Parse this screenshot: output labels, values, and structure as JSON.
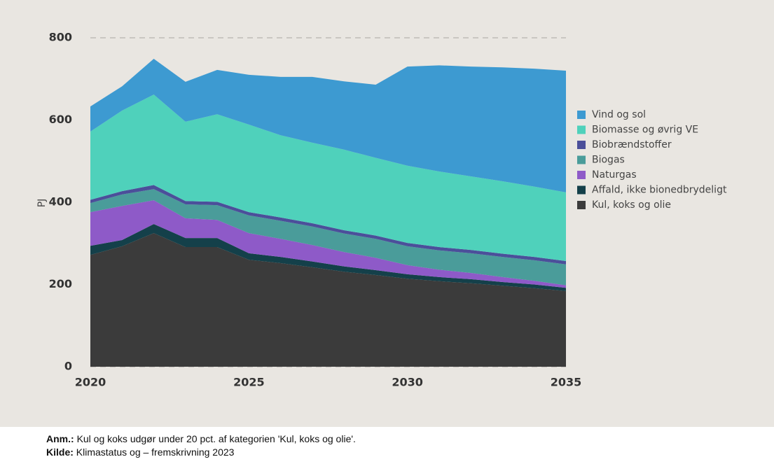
{
  "chart_data": {
    "type": "stacked_area",
    "y_label": "PJ",
    "x": [
      2020,
      2021,
      2022,
      2023,
      2024,
      2025,
      2026,
      2027,
      2028,
      2029,
      2030,
      2031,
      2032,
      2033,
      2034,
      2035
    ],
    "xlim": [
      2020,
      2035
    ],
    "xticks": [
      2020,
      2025,
      2030,
      2035
    ],
    "ylim": [
      0,
      800
    ],
    "yticks": [
      0,
      200,
      400,
      600,
      800
    ],
    "grid": true,
    "legend": "right",
    "series": [
      {
        "name": "Kul, koks og olie",
        "color": "#3b3b3b",
        "values": [
          272,
          293,
          325,
          291,
          291,
          260,
          252,
          242,
          231,
          223,
          214,
          208,
          203,
          197,
          191,
          184
        ]
      },
      {
        "name": "Affald, ikke bionedbrydeligt",
        "color": "#14404a",
        "values": [
          22,
          15,
          22,
          22,
          22,
          16,
          15,
          14,
          13,
          12,
          11,
          10,
          10,
          9,
          9,
          8
        ]
      },
      {
        "name": "Naturgas",
        "color": "#8e5ac8",
        "values": [
          82,
          83,
          58,
          48,
          44,
          49,
          44,
          40,
          35,
          30,
          22,
          18,
          15,
          12,
          9,
          6
        ]
      },
      {
        "name": "Biogas",
        "color": "#4a9c9a",
        "values": [
          22,
          28,
          27,
          34,
          36,
          43,
          44,
          45,
          45,
          46,
          46,
          47,
          48,
          49,
          50,
          51
        ]
      },
      {
        "name": "Biobrændstoffer",
        "color": "#4b4f9a",
        "values": [
          8,
          8,
          10,
          8,
          8,
          8,
          8,
          8,
          8,
          8,
          8,
          8,
          8,
          8,
          8,
          8
        ]
      },
      {
        "name": "Biomasse og øvrig VE",
        "color": "#4fd1bb",
        "values": [
          166,
          196,
          220,
          193,
          213,
          213,
          200,
          196,
          196,
          189,
          188,
          184,
          179,
          176,
          171,
          167
        ]
      },
      {
        "name": "Vind og sol",
        "color": "#3d9ad1",
        "values": [
          61,
          59,
          87,
          97,
          108,
          121,
          142,
          160,
          166,
          178,
          241,
          258,
          267,
          277,
          287,
          296
        ]
      }
    ]
  },
  "notes": [
    {
      "label": "Anm.:",
      "text": "Kul og koks udgør under 20 pct. af kategorien 'Kul, koks og olie'."
    },
    {
      "label": "Kilde:",
      "text": "Klimastatus og – fremskrivning 2023"
    }
  ]
}
